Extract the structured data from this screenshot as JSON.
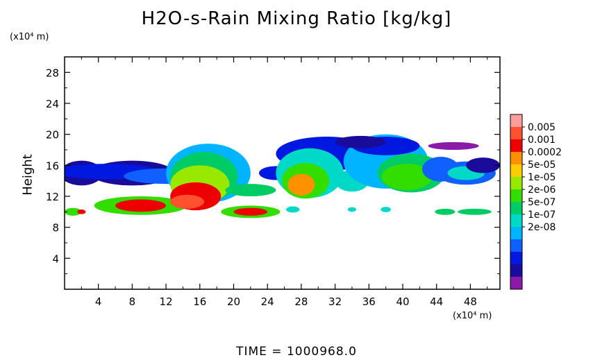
{
  "chart_data": {
    "type": "heatmap",
    "title": "H2O-s-Rain Mixing Ratio [kg/kg]",
    "ylabel": "Height",
    "xlabel": "",
    "y_unit": "(x10⁴ m)",
    "x_unit": "(x10⁴ m)",
    "footer": "TIME = 1000968.0",
    "xlim": [
      0,
      51.5
    ],
    "ylim": [
      0,
      30
    ],
    "x_ticks": [
      4,
      8,
      12,
      16,
      20,
      24,
      28,
      32,
      36,
      40,
      44,
      48
    ],
    "y_ticks": [
      4,
      8,
      12,
      16,
      20,
      24,
      28
    ],
    "colorbar": {
      "labels": [
        "0.005",
        "0.001",
        "0.0002",
        "5e-05",
        "1e-05",
        "2e-06",
        "5e-07",
        "1e-07",
        "2e-08"
      ],
      "colors": [
        "#ff9c9c",
        "#ff5030",
        "#ee0000",
        "#ff9000",
        "#ffcc00",
        "#99e800",
        "#33dd00",
        "#00cc66",
        "#00d8c8",
        "#00b4ff",
        "#1060ff",
        "#0018e0",
        "#1a0c9a",
        "#8c1aa8"
      ]
    },
    "blobs": [
      {
        "x": 2,
        "y": 15,
        "rx": 2.5,
        "ry": 1.6,
        "level": 1
      },
      {
        "x": 8,
        "y": 15,
        "rx": 5,
        "ry": 1.6,
        "level": 1
      },
      {
        "x": 5,
        "y": 15.2,
        "rx": 6,
        "ry": 1.0,
        "level": 2
      },
      {
        "x": 12,
        "y": 14.6,
        "rx": 5,
        "ry": 1.0,
        "level": 3
      },
      {
        "x": 9,
        "y": 10.8,
        "rx": 5.5,
        "ry": 1.2,
        "level": 7
      },
      {
        "x": 9,
        "y": 10.8,
        "rx": 3,
        "ry": 0.8,
        "level": 11
      },
      {
        "x": 1,
        "y": 10,
        "rx": 1,
        "ry": 0.5,
        "level": 7
      },
      {
        "x": 2,
        "y": 10,
        "rx": 0.5,
        "ry": 0.3,
        "level": 11
      },
      {
        "x": 17,
        "y": 15,
        "rx": 5,
        "ry": 3.8,
        "level": 4
      },
      {
        "x": 16.5,
        "y": 14.5,
        "rx": 4,
        "ry": 3.2,
        "level": 6
      },
      {
        "x": 16,
        "y": 13.5,
        "rx": 3.5,
        "ry": 2.5,
        "level": 8
      },
      {
        "x": 15.5,
        "y": 12,
        "rx": 3,
        "ry": 1.8,
        "level": 11
      },
      {
        "x": 14.5,
        "y": 11.3,
        "rx": 2,
        "ry": 0.9,
        "level": 12
      },
      {
        "x": 22,
        "y": 12.8,
        "rx": 3,
        "ry": 0.8,
        "level": 6
      },
      {
        "x": 22,
        "y": 10,
        "rx": 3.5,
        "ry": 0.8,
        "level": 7
      },
      {
        "x": 22,
        "y": 10,
        "rx": 2,
        "ry": 0.5,
        "level": 11
      },
      {
        "x": 25,
        "y": 15,
        "rx": 2,
        "ry": 0.9,
        "level": 2
      },
      {
        "x": 31,
        "y": 17.5,
        "rx": 6,
        "ry": 2.2,
        "level": 2
      },
      {
        "x": 29,
        "y": 15,
        "rx": 4,
        "ry": 3.2,
        "level": 5
      },
      {
        "x": 28.5,
        "y": 14,
        "rx": 2.8,
        "ry": 2.3,
        "level": 7
      },
      {
        "x": 28,
        "y": 13.5,
        "rx": 1.6,
        "ry": 1.4,
        "level": 10
      },
      {
        "x": 34,
        "y": 14,
        "rx": 2,
        "ry": 1.4,
        "level": 5
      },
      {
        "x": 38,
        "y": 16.5,
        "rx": 5,
        "ry": 3.5,
        "level": 4
      },
      {
        "x": 38,
        "y": 18.5,
        "rx": 4,
        "ry": 1.2,
        "level": 2
      },
      {
        "x": 41,
        "y": 15,
        "rx": 4,
        "ry": 2.5,
        "level": 6
      },
      {
        "x": 40.5,
        "y": 14.5,
        "rx": 3,
        "ry": 1.7,
        "level": 7
      },
      {
        "x": 44.5,
        "y": 15.5,
        "rx": 2.2,
        "ry": 1.6,
        "level": 3
      },
      {
        "x": 47.5,
        "y": 15,
        "rx": 3.5,
        "ry": 1.5,
        "level": 3
      },
      {
        "x": 47.5,
        "y": 15,
        "rx": 2.2,
        "ry": 0.9,
        "level": 5
      },
      {
        "x": 49.5,
        "y": 16,
        "rx": 2,
        "ry": 1,
        "level": 1
      },
      {
        "x": 35,
        "y": 19,
        "rx": 3,
        "ry": 0.8,
        "level": 1
      },
      {
        "x": 46,
        "y": 18.5,
        "rx": 3,
        "ry": 0.5,
        "level": 0
      },
      {
        "x": 27,
        "y": 10.3,
        "rx": 0.8,
        "ry": 0.4,
        "level": 5
      },
      {
        "x": 34,
        "y": 10.3,
        "rx": 0.5,
        "ry": 0.3,
        "level": 5
      },
      {
        "x": 38,
        "y": 10.3,
        "rx": 0.6,
        "ry": 0.35,
        "level": 5
      },
      {
        "x": 45,
        "y": 10,
        "rx": 1.2,
        "ry": 0.4,
        "level": 6
      },
      {
        "x": 48.5,
        "y": 10,
        "rx": 2,
        "ry": 0.4,
        "level": 6
      }
    ]
  }
}
